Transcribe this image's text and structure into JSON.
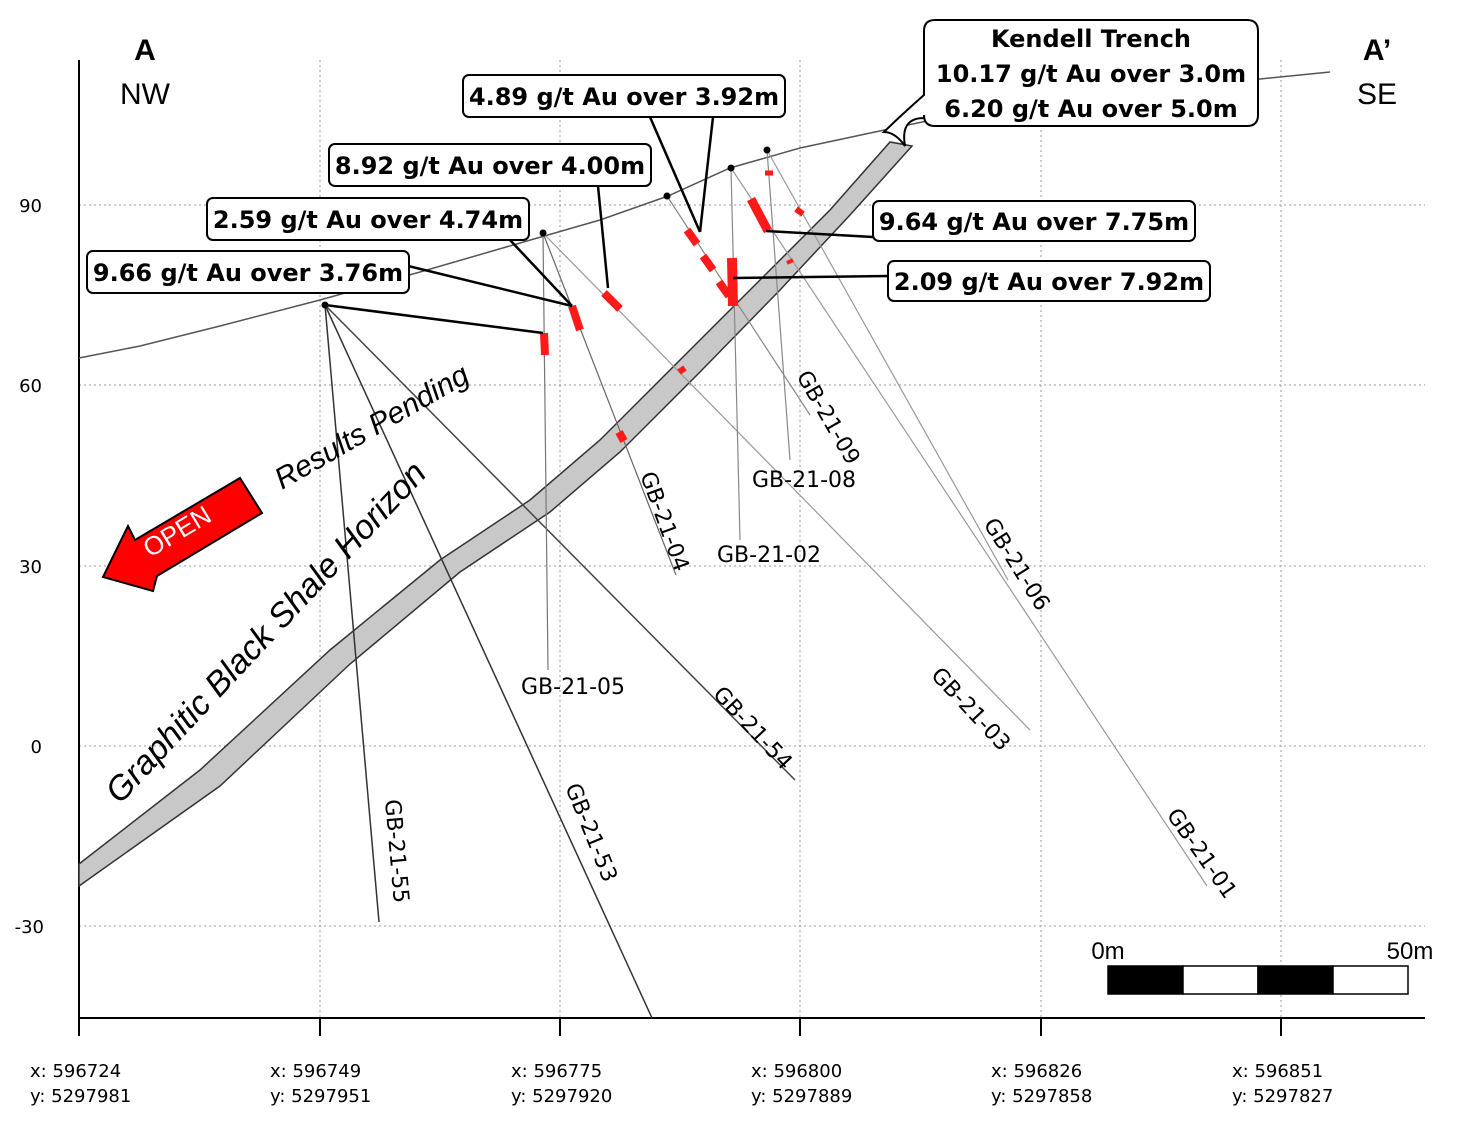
{
  "section": {
    "start_letter": "A",
    "start_direction": "NW",
    "end_letter": "A’",
    "end_direction": "SE"
  },
  "y_axis": {
    "ticks": [
      "90",
      "60",
      "30",
      "0",
      "-30"
    ]
  },
  "x_axis": {
    "coordinates": [
      {
        "x": "x: 596724",
        "y": "y: 5297981"
      },
      {
        "x": "x: 596749",
        "y": "y: 5297951"
      },
      {
        "x": "x: 596775",
        "y": "y: 5297920"
      },
      {
        "x": "x: 596800",
        "y": "y: 5297889"
      },
      {
        "x": "x: 596826",
        "y": "y: 5297858"
      },
      {
        "x": "x: 596851",
        "y": "y: 5297827"
      }
    ]
  },
  "trench_callout": {
    "title": "Kendell Trench",
    "line1": "10.17 g/t Au over 3.0m",
    "line2": "6.20 g/t Au over 5.0m"
  },
  "intercepts": [
    {
      "text": "4.89 g/t Au over 3.92m"
    },
    {
      "text": "8.92 g/t Au over 4.00m"
    },
    {
      "text": "2.59 g/t Au over 4.74m"
    },
    {
      "text": "9.66 g/t Au over 3.76m"
    },
    {
      "text": "9.64 g/t Au over 7.75m"
    },
    {
      "text": "2.09 g/t Au over 7.92m"
    }
  ],
  "drill_holes": [
    "GB-21-09",
    "GB-21-08",
    "GB-21-04",
    "GB-21-02",
    "GB-21-06",
    "GB-21-05",
    "GB-21-54",
    "GB-21-03",
    "GB-21-53",
    "GB-21-55",
    "GB-21-01"
  ],
  "annotations": {
    "results_pending": "Results Pending",
    "open_arrow": "OPEN",
    "horizon": "Graphitic Black Shale Horizon"
  },
  "scale_bar": {
    "start_label": "0m",
    "end_label": "50m"
  },
  "colors": {
    "intercept_red": "#ff1a1a",
    "horizon_fill": "#c8c8c8",
    "open_arrow_red": "#ff0000"
  }
}
